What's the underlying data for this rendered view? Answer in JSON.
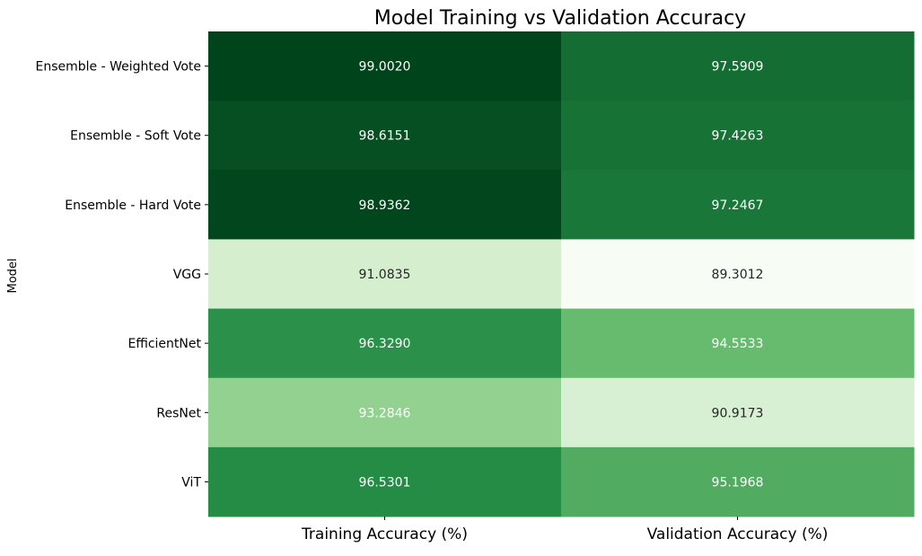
{
  "chart_data": {
    "type": "heatmap",
    "title": "Model Training vs Validation Accuracy",
    "xlabel": "",
    "ylabel": "Model",
    "x_categories": [
      "Training Accuracy (%)",
      "Validation Accuracy (%)"
    ],
    "y_categories": [
      "Ensemble - Weighted Vote",
      "Ensemble - Soft Vote",
      "Ensemble - Hard Vote",
      "VGG",
      "EfficientNet",
      "ResNet",
      "ViT"
    ],
    "values": [
      [
        99.002,
        97.5909
      ],
      [
        98.6151,
        97.4263
      ],
      [
        98.9362,
        97.2467
      ],
      [
        91.0835,
        89.3012
      ],
      [
        96.329,
        94.5533
      ],
      [
        93.2846,
        90.9173
      ],
      [
        96.5301,
        95.1968
      ]
    ],
    "value_labels": [
      [
        "99.0020",
        "97.5909"
      ],
      [
        "98.6151",
        "97.4263"
      ],
      [
        "98.9362",
        "97.2467"
      ],
      [
        "91.0835",
        "89.3012"
      ],
      [
        "96.3290",
        "94.5533"
      ],
      [
        "93.2846",
        "90.9173"
      ],
      [
        "96.5301",
        "95.1968"
      ]
    ],
    "colormap": "Greens",
    "color_range": [
      89.3012,
      99.002
    ],
    "colors": {
      "low": "#f7fcf5",
      "mid_low": "#c7e9c0",
      "mid": "#74c476",
      "mid_high": "#238b45",
      "high": "#00441b",
      "text_light": "#ffffff",
      "text_dark": "#262626"
    },
    "colorbar": false,
    "grid": false
  }
}
